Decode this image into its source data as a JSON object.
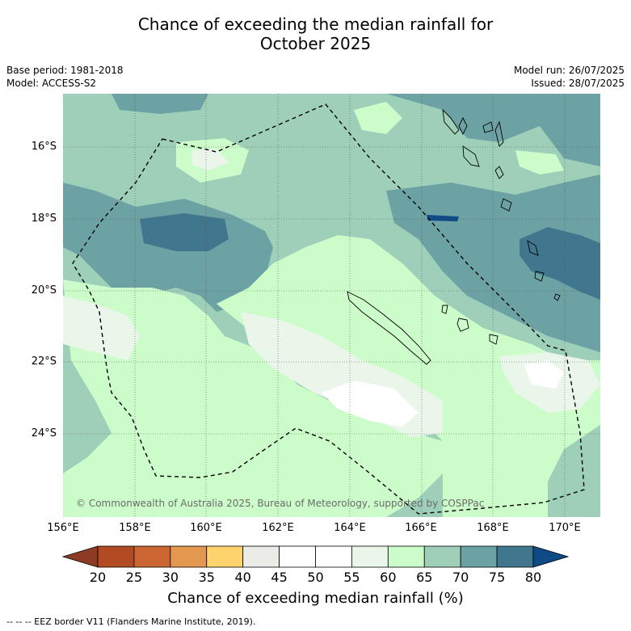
{
  "title_line1": "Chance of exceeding the median rainfall for",
  "title_line2": "October 2025",
  "base_period": "Base period: 1981-2018",
  "model": "Model: ACCESS-S2",
  "model_run": "Model run: 26/07/2025",
  "issued": "Issued: 28/07/2025",
  "copyright": "© Commonwealth of Australia 2025, Bureau of Meteorology, supported by COSPPac",
  "lat_labels": [
    "16°S",
    "18°S",
    "20°S",
    "22°S",
    "24°S"
  ],
  "lon_labels": [
    "156°E",
    "158°E",
    "160°E",
    "162°E",
    "164°E",
    "166°E",
    "168°E",
    "170°E"
  ],
  "colorbar": {
    "label": "Chance of exceeding median rainfall (%)",
    "ticks": [
      "20",
      "25",
      "30",
      "35",
      "40",
      "45",
      "50",
      "55",
      "60",
      "65",
      "70",
      "75",
      "80"
    ],
    "under_color": "#8e3b24",
    "over_color": "#0d4a86",
    "colors": [
      "#b24a24",
      "#cb6532",
      "#e4974f",
      "#fdd36d",
      "#ebebe8",
      "#ffffff",
      "#ffffff",
      "#eaf6ea",
      "#ccfcca",
      "#9ecfb8",
      "#6da2a5",
      "#40778f"
    ]
  },
  "footnote": "--  --  -- EEZ border V11 (Flanders Marine Institute, 2019)."
}
